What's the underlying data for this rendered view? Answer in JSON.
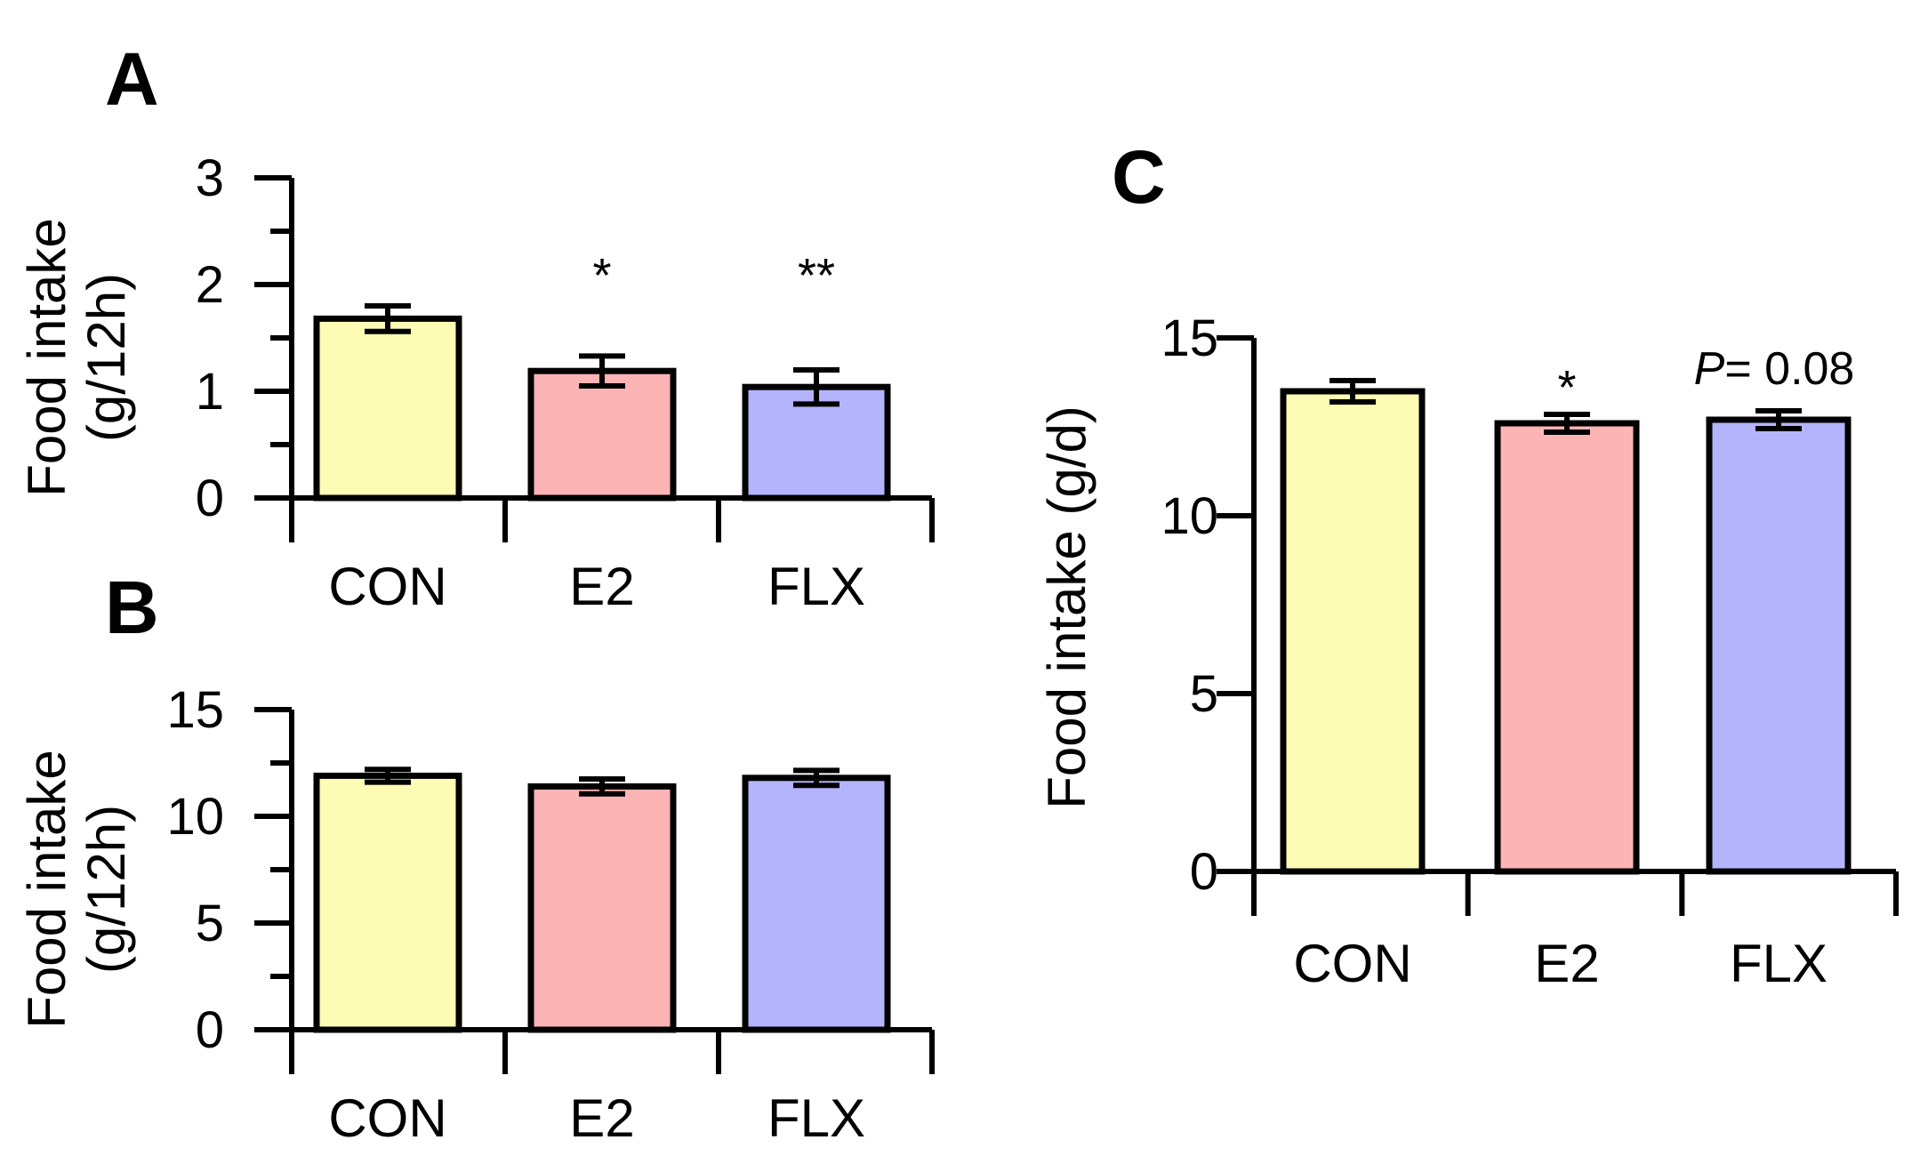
{
  "colors": {
    "CON": "#fcfcb4",
    "E2": "#fdb4b4",
    "FLX": "#b4b4fc",
    "axis": "#000000"
  },
  "chart_data": [
    {
      "panel": "A",
      "type": "bar",
      "categories": [
        "CON",
        "E2",
        "FLX"
      ],
      "values": [
        1.68,
        1.19,
        1.04
      ],
      "errors": [
        0.12,
        0.14,
        0.16
      ],
      "ylabel_line1": "Food intake",
      "ylabel_line2": "(g/12h)",
      "ylim": [
        0,
        3
      ],
      "yticks": [
        "0",
        "1",
        "2",
        "3"
      ],
      "annotations": [
        "",
        "*",
        "**"
      ]
    },
    {
      "panel": "B",
      "type": "bar",
      "categories": [
        "CON",
        "E2",
        "FLX"
      ],
      "values": [
        11.9,
        11.4,
        11.8
      ],
      "errors": [
        0.3,
        0.35,
        0.35
      ],
      "ylabel_line1": "Food intake",
      "ylabel_line2": "(g/12h)",
      "ylim": [
        0,
        15
      ],
      "yticks": [
        "0",
        "5",
        "10",
        "15"
      ],
      "annotations": [
        "",
        "",
        ""
      ]
    },
    {
      "panel": "C",
      "type": "bar",
      "categories": [
        "CON",
        "E2",
        "FLX"
      ],
      "values": [
        13.5,
        12.6,
        12.7
      ],
      "errors": [
        0.3,
        0.25,
        0.25
      ],
      "ylabel": "Food intake (g/d)",
      "ylim": [
        0,
        15
      ],
      "yticks": [
        "0",
        "5",
        "10",
        "15"
      ],
      "annotations": [
        "",
        "*",
        ""
      ],
      "pvalue_prefix": "P",
      "pvalue_rest": "= 0.08"
    }
  ]
}
